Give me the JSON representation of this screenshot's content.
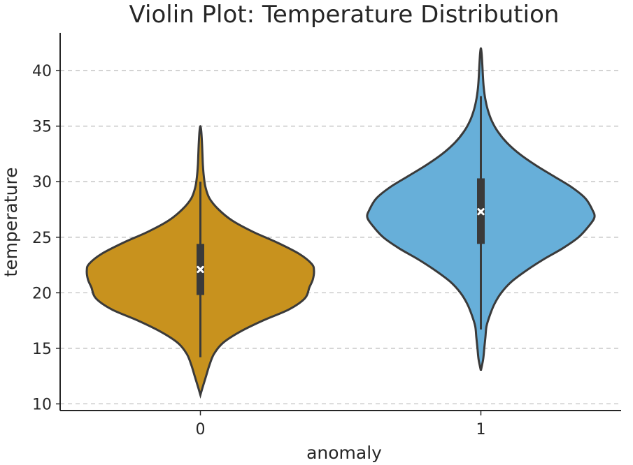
{
  "chart_data": {
    "type": "violin",
    "title": "Violin Plot: Temperature Distribution",
    "xlabel": "anomaly",
    "ylabel": "temperature",
    "ylim": [
      9.4,
      43.4
    ],
    "yticks": [
      10,
      15,
      20,
      25,
      30,
      35,
      40
    ],
    "ytick_labels": [
      "10",
      "15",
      "20",
      "25",
      "30",
      "35",
      "40"
    ],
    "categories": [
      "0",
      "1"
    ],
    "grid": "horizontal-dashed",
    "violins": [
      {
        "category": "0",
        "color": "#C8921E",
        "min": 10.8,
        "max": 35.0,
        "q1": 19.8,
        "median": 22.1,
        "q3": 24.4,
        "whisker_low": 14.2,
        "whisker_high": 30.0,
        "density": [
          [
            10.8,
            0.0
          ],
          [
            11.5,
            0.02
          ],
          [
            12.5,
            0.05
          ],
          [
            13.5,
            0.08
          ],
          [
            14.5,
            0.12
          ],
          [
            15.5,
            0.2
          ],
          [
            16.5,
            0.35
          ],
          [
            17.5,
            0.55
          ],
          [
            18.5,
            0.78
          ],
          [
            19.5,
            0.92
          ],
          [
            20.5,
            0.96
          ],
          [
            21.2,
            0.99
          ],
          [
            22.0,
            1.0
          ],
          [
            22.6,
            0.98
          ],
          [
            23.5,
            0.87
          ],
          [
            24.5,
            0.68
          ],
          [
            25.5,
            0.46
          ],
          [
            26.5,
            0.28
          ],
          [
            27.5,
            0.16
          ],
          [
            28.5,
            0.08
          ],
          [
            29.5,
            0.045
          ],
          [
            30.5,
            0.03
          ],
          [
            31.5,
            0.022
          ],
          [
            32.5,
            0.018
          ],
          [
            33.5,
            0.014
          ],
          [
            34.5,
            0.008
          ],
          [
            35.0,
            0.0
          ]
        ]
      },
      {
        "category": "1",
        "color": "#67AFD9",
        "min": 13.0,
        "max": 42.0,
        "q1": 24.4,
        "median": 27.3,
        "q3": 30.3,
        "whisker_low": 16.7,
        "whisker_high": 37.7,
        "density": [
          [
            13.0,
            0.0
          ],
          [
            14.0,
            0.02
          ],
          [
            15.0,
            0.03
          ],
          [
            16.0,
            0.04
          ],
          [
            17.0,
            0.05
          ],
          [
            18.0,
            0.08
          ],
          [
            19.0,
            0.12
          ],
          [
            20.0,
            0.18
          ],
          [
            21.0,
            0.27
          ],
          [
            22.0,
            0.4
          ],
          [
            23.0,
            0.55
          ],
          [
            24.0,
            0.72
          ],
          [
            25.0,
            0.86
          ],
          [
            26.0,
            0.95
          ],
          [
            26.8,
            1.0
          ],
          [
            27.5,
            0.98
          ],
          [
            28.5,
            0.92
          ],
          [
            29.5,
            0.8
          ],
          [
            30.5,
            0.64
          ],
          [
            31.5,
            0.48
          ],
          [
            32.5,
            0.34
          ],
          [
            33.5,
            0.23
          ],
          [
            34.5,
            0.15
          ],
          [
            35.5,
            0.095
          ],
          [
            36.5,
            0.06
          ],
          [
            37.5,
            0.038
          ],
          [
            38.5,
            0.025
          ],
          [
            39.5,
            0.018
          ],
          [
            40.5,
            0.013
          ],
          [
            41.5,
            0.007
          ],
          [
            42.0,
            0.0
          ]
        ]
      }
    ]
  }
}
